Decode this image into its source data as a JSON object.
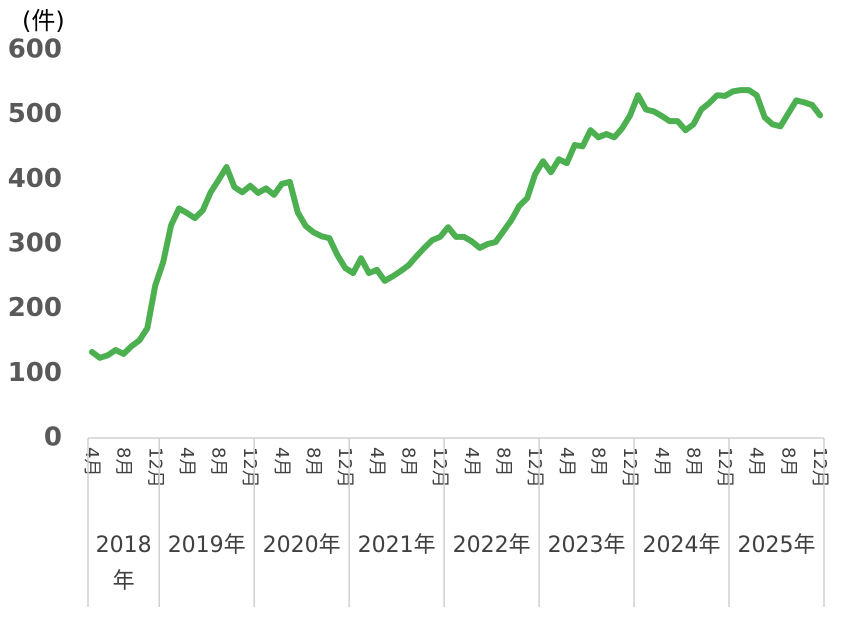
{
  "chart_data": {
    "type": "line",
    "y_unit_label": "(件)",
    "categories": [
      "4月",
      null,
      null,
      null,
      "8月",
      null,
      null,
      null,
      "12月",
      null,
      null,
      null,
      "4月",
      null,
      null,
      null,
      "8月",
      null,
      null,
      null,
      "12月",
      null,
      null,
      null,
      "4月",
      null,
      null,
      null,
      "8月",
      null,
      null,
      null,
      "12月",
      null,
      null,
      null,
      "4月",
      null,
      null,
      null,
      "8月",
      null,
      null,
      null,
      "12月",
      null,
      null,
      null,
      "4月",
      null,
      null,
      null,
      "8月",
      null,
      null,
      null,
      "12月",
      null,
      null,
      null,
      "4月",
      null,
      null,
      null,
      "8月",
      null,
      null,
      null,
      "12月",
      null,
      null,
      null,
      "4月",
      null,
      null,
      null,
      "8月",
      null,
      null,
      null,
      "12月",
      null,
      null,
      null,
      "4月",
      null,
      null,
      null,
      "8月",
      null,
      null,
      null,
      "12月"
    ],
    "x_groups": [
      {
        "label": "2018年",
        "count": 9
      },
      {
        "label": "2019年",
        "count": 12
      },
      {
        "label": "2020年",
        "count": 12
      },
      {
        "label": "2021年",
        "count": 12
      },
      {
        "label": "2022年",
        "count": 12
      },
      {
        "label": "2023年",
        "count": 12
      },
      {
        "label": "2024年",
        "count": 12
      },
      {
        "label": "2025年",
        "count": 12
      }
    ],
    "series": [
      {
        "name": null,
        "color": "#4caf50",
        "values": [
          133,
          124,
          128,
          136,
          130,
          142,
          151,
          170,
          236,
          272,
          329,
          355,
          348,
          340,
          352,
          380,
          399,
          419,
          388,
          380,
          390,
          379,
          386,
          376,
          393,
          396,
          349,
          328,
          318,
          312,
          309,
          283,
          263,
          255,
          278,
          255,
          260,
          243,
          250,
          258,
          267,
          281,
          294,
          306,
          311,
          326,
          311,
          311,
          304,
          294,
          300,
          303,
          320,
          337,
          359,
          371,
          408,
          428,
          411,
          431,
          425,
          453,
          451,
          476,
          465,
          470,
          465,
          479,
          499,
          530,
          508,
          505,
          498,
          490,
          490,
          476,
          485,
          508,
          518,
          530,
          529,
          536,
          538,
          538,
          530,
          496,
          485,
          482,
          502,
          522,
          519,
          515,
          499
        ]
      }
    ],
    "ylim": [
      0,
      600
    ],
    "yticks": [
      0,
      100,
      200,
      300,
      400,
      500,
      600
    ],
    "grid": false
  }
}
